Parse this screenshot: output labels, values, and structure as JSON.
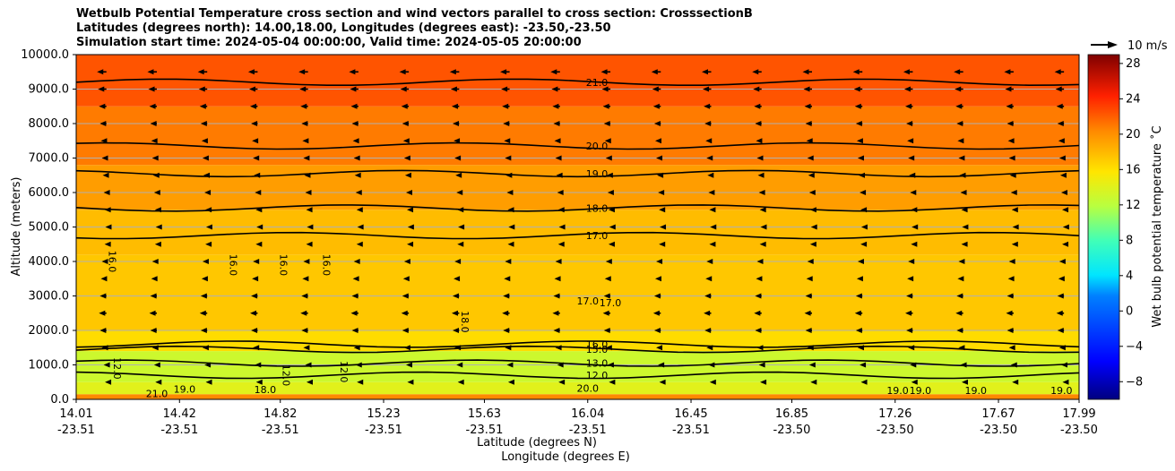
{
  "chart_data": {
    "type": "heatmap",
    "title_lines": [
      "Wetbulb Potential Temperature cross section and wind vectors parallel to cross section: CrosssectionB",
      "Latitudes (degrees north): 14.00,18.00, Longitudes (degrees east): -23.50,-23.50",
      "Simulation start time: 2024-05-04 00:00:00, Valid time: 2024-05-05 20:00:00"
    ],
    "xlabel": "Latitude (degrees N)",
    "xlabel2": "Longitude (degrees E)",
    "ylabel": "Altitude (meters)",
    "xlim": [
      14.01,
      17.99
    ],
    "ylim": [
      0,
      10000
    ],
    "x_ticks": [
      {
        "lat": "14.01",
        "lon": "-23.51",
        "value": 14.01
      },
      {
        "lat": "14.42",
        "lon": "-23.51",
        "value": 14.42
      },
      {
        "lat": "14.82",
        "lon": "-23.51",
        "value": 14.82
      },
      {
        "lat": "15.23",
        "lon": "-23.51",
        "value": 15.23
      },
      {
        "lat": "15.63",
        "lon": "-23.51",
        "value": 15.63
      },
      {
        "lat": "16.04",
        "lon": "-23.51",
        "value": 16.04
      },
      {
        "lat": "16.45",
        "lon": "-23.51",
        "value": 16.45
      },
      {
        "lat": "16.85",
        "lon": "-23.50",
        "value": 16.85
      },
      {
        "lat": "17.26",
        "lon": "-23.50",
        "value": 17.26
      },
      {
        "lat": "17.67",
        "lon": "-23.50",
        "value": 17.67
      },
      {
        "lat": "17.99",
        "lon": "-23.50",
        "value": 17.99
      }
    ],
    "y_ticks": [
      {
        "label": "0.0",
        "value": 0
      },
      {
        "label": "1000.0",
        "value": 1000
      },
      {
        "label": "2000.0",
        "value": 2000
      },
      {
        "label": "3000.0",
        "value": 3000
      },
      {
        "label": "4000.0",
        "value": 4000
      },
      {
        "label": "5000.0",
        "value": 5000
      },
      {
        "label": "6000.0",
        "value": 6000
      },
      {
        "label": "7000.0",
        "value": 7000
      },
      {
        "label": "8000.0",
        "value": 8000
      },
      {
        "label": "9000.0",
        "value": 9000
      },
      {
        "label": "10000.0",
        "value": 10000
      }
    ],
    "grid": true,
    "colorbar": {
      "label": "Wet bulb potential temperature ˚C",
      "range": [
        -10,
        29
      ],
      "ticks": [
        {
          "label": "−8",
          "value": -8
        },
        {
          "label": "−4",
          "value": -4
        },
        {
          "label": "0",
          "value": 0
        },
        {
          "label": "4",
          "value": 4
        },
        {
          "label": "8",
          "value": 8
        },
        {
          "label": "12",
          "value": 12
        },
        {
          "label": "16",
          "value": 16
        },
        {
          "label": "20",
          "value": 20
        },
        {
          "label": "24",
          "value": 24
        },
        {
          "label": "28",
          "value": 28
        }
      ]
    },
    "quiver_key": {
      "label": "10 m/s",
      "speed": 10
    },
    "contours": [
      {
        "level": 21.0,
        "label": "21.0",
        "alt": 9200,
        "label_x": 16.04
      },
      {
        "level": 20.0,
        "label": "20.0",
        "alt": 7350,
        "label_x": 16.04
      },
      {
        "level": 19.0,
        "label": "19.0",
        "alt": 6550,
        "label_x": 16.04
      },
      {
        "level": 18.0,
        "label": "18.0",
        "alt": 5550,
        "label_x": 16.04
      },
      {
        "level": 17.0,
        "label": "17.0",
        "alt": 4750,
        "label_x": 16.04
      },
      {
        "level": 16.0,
        "label": "16.0",
        "alt": 1600,
        "label_x": 16.04
      },
      {
        "level": 15.0,
        "label": "15.0",
        "alt": 1450,
        "label_x": 16.04
      },
      {
        "level": 13.0,
        "label": "13.0",
        "alt": 1050,
        "label_x": 16.04
      },
      {
        "level": 12.0,
        "label": "12.0",
        "alt": 700,
        "label_x": 16.04
      }
    ],
    "extra_contour_labels": [
      {
        "label": "16.0",
        "lat": 14.14,
        "alt": 4000,
        "vertical": true
      },
      {
        "label": "16.0",
        "lat": 14.62,
        "alt": 3900,
        "vertical": true
      },
      {
        "label": "16.0",
        "lat": 14.82,
        "alt": 3900,
        "vertical": true
      },
      {
        "label": "16.0",
        "lat": 14.99,
        "alt": 3900,
        "vertical": true
      },
      {
        "label": "17.0",
        "lat": 16.04,
        "alt": 2750,
        "vertical": false
      },
      {
        "label": "17.0",
        "lat": 16.13,
        "alt": 2700,
        "vertical": false
      },
      {
        "label": "18.0",
        "lat": 15.54,
        "alt": 2250,
        "vertical": true
      },
      {
        "label": "12.0",
        "lat": 14.16,
        "alt": 900,
        "vertical": true
      },
      {
        "label": "12.0",
        "lat": 14.83,
        "alt": 700,
        "vertical": true
      },
      {
        "label": "12.0",
        "lat": 15.06,
        "alt": 800,
        "vertical": true
      },
      {
        "label": "19.0",
        "lat": 14.44,
        "alt": 200,
        "vertical": false
      },
      {
        "label": "18.0",
        "lat": 14.76,
        "alt": 180,
        "vertical": false
      },
      {
        "label": "21.0",
        "lat": 14.33,
        "alt": 60,
        "vertical": false
      },
      {
        "label": "20.0",
        "lat": 16.04,
        "alt": 220,
        "vertical": false
      },
      {
        "label": "19.0",
        "lat": 17.27,
        "alt": 150,
        "vertical": false
      },
      {
        "label": "19.0",
        "lat": 17.36,
        "alt": 150,
        "vertical": false
      },
      {
        "label": "19.0",
        "lat": 17.58,
        "alt": 150,
        "vertical": false
      },
      {
        "label": "19.0",
        "lat": 17.92,
        "alt": 150,
        "vertical": false
      }
    ],
    "color_bands": [
      {
        "from": 0,
        "to": 150,
        "value": 20
      },
      {
        "from": 150,
        "to": 500,
        "value": 14
      },
      {
        "from": 500,
        "to": 1400,
        "value": 13
      },
      {
        "from": 1400,
        "to": 2000,
        "value": 16
      },
      {
        "from": 2000,
        "to": 4200,
        "value": 17
      },
      {
        "from": 4200,
        "to": 5500,
        "value": 17.5
      },
      {
        "from": 5500,
        "to": 6800,
        "value": 19
      },
      {
        "from": 6800,
        "to": 8500,
        "value": 20.5
      },
      {
        "from": 8500,
        "to": 10000,
        "value": 22
      }
    ],
    "wind_rows": [
      {
        "alt": 9500,
        "u": -5
      },
      {
        "alt": 9000,
        "u": -4.5
      },
      {
        "alt": 8500,
        "u": -4
      },
      {
        "alt": 8000,
        "u": -3.5
      },
      {
        "alt": 7500,
        "u": -3
      },
      {
        "alt": 7000,
        "u": -2.5
      },
      {
        "alt": 6500,
        "u": -2
      },
      {
        "alt": 6000,
        "u": -1.5
      },
      {
        "alt": 5500,
        "u": -1
      },
      {
        "alt": 5000,
        "u": -0.6
      },
      {
        "alt": 4500,
        "u": -1
      },
      {
        "alt": 4000,
        "u": -2.5
      },
      {
        "alt": 3500,
        "u": -3
      },
      {
        "alt": 3000,
        "u": -3.5
      },
      {
        "alt": 2500,
        "u": -4
      },
      {
        "alt": 2000,
        "u": -3.5
      },
      {
        "alt": 1500,
        "u": -2.5
      },
      {
        "alt": 1000,
        "u": -1.5
      },
      {
        "alt": 500,
        "u": -0.8
      }
    ]
  }
}
